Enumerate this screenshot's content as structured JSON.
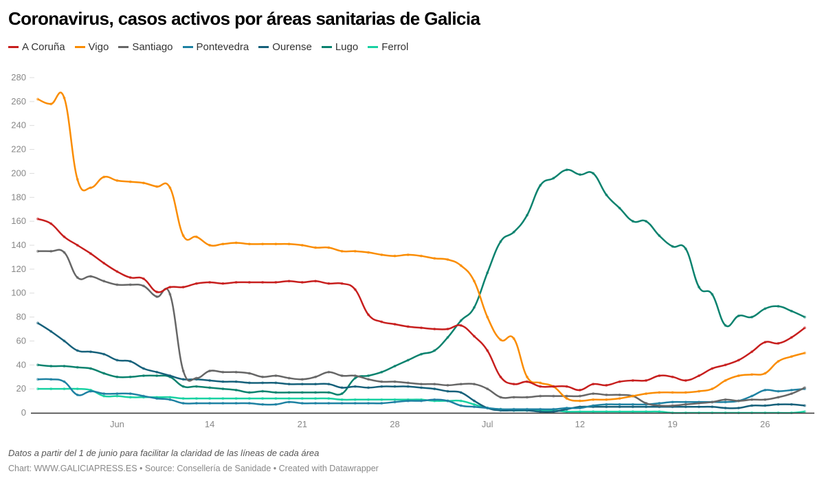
{
  "chart_data": {
    "type": "line",
    "title": "Coronavirus, casos activos por áreas sanitarias de Galicia",
    "xlabel": "",
    "ylabel": "",
    "ylim": [
      0,
      280
    ],
    "yticks": [
      0,
      20,
      40,
      60,
      80,
      100,
      120,
      140,
      160,
      180,
      200,
      220,
      240,
      260,
      280
    ],
    "xtick_labels": [
      {
        "date": "Jun 7",
        "label": "Jun"
      },
      {
        "date": "Jun 14",
        "label": "14"
      },
      {
        "date": "Jun 21",
        "label": "21"
      },
      {
        "date": "Jun 28",
        "label": "28"
      },
      {
        "date": "Jul 5",
        "label": "Jul"
      },
      {
        "date": "Jul 12",
        "label": "12"
      },
      {
        "date": "Jul 19",
        "label": "19"
      },
      {
        "date": "Jul 26",
        "label": "26"
      }
    ],
    "grid": false,
    "legend_placement": "top-left",
    "x": [
      "Jun 1",
      "Jun 2",
      "Jun 3",
      "Jun 4",
      "Jun 5",
      "Jun 6",
      "Jun 7",
      "Jun 8",
      "Jun 9",
      "Jun 10",
      "Jun 11",
      "Jun 12",
      "Jun 13",
      "Jun 14",
      "Jun 15",
      "Jun 16",
      "Jun 17",
      "Jun 18",
      "Jun 19",
      "Jun 20",
      "Jun 21",
      "Jun 22",
      "Jun 23",
      "Jun 24",
      "Jun 25",
      "Jun 26",
      "Jun 27",
      "Jun 28",
      "Jun 29",
      "Jun 30",
      "Jul 1",
      "Jul 2",
      "Jul 3",
      "Jul 4",
      "Jul 5",
      "Jul 6",
      "Jul 7",
      "Jul 8",
      "Jul 9",
      "Jul 10",
      "Jul 11",
      "Jul 12",
      "Jul 13",
      "Jul 14",
      "Jul 15",
      "Jul 16",
      "Jul 17",
      "Jul 18",
      "Jul 19",
      "Jul 20",
      "Jul 21",
      "Jul 22",
      "Jul 23",
      "Jul 24",
      "Jul 25",
      "Jul 26",
      "Jul 27",
      "Jul 28",
      "Jul 29"
    ],
    "series": [
      {
        "name": "A Coruña",
        "color": "#c71e1d",
        "values": [
          162,
          158,
          147,
          140,
          133,
          125,
          118,
          113,
          112,
          101,
          105,
          105,
          108,
          109,
          108,
          109,
          109,
          109,
          109,
          110,
          109,
          110,
          108,
          108,
          103,
          82,
          76,
          74,
          72,
          71,
          70,
          70,
          73,
          64,
          52,
          30,
          24,
          26,
          22,
          22,
          22,
          19,
          24,
          23,
          26,
          27,
          27,
          31,
          30,
          27,
          31,
          37,
          40,
          44,
          51,
          59,
          58,
          63,
          71
        ]
      },
      {
        "name": "Vigo",
        "color": "#fa8c00",
        "values": [
          262,
          258,
          263,
          195,
          188,
          197,
          194,
          193,
          192,
          189,
          188,
          148,
          147,
          140,
          141,
          142,
          141,
          141,
          141,
          141,
          140,
          138,
          138,
          135,
          135,
          134,
          132,
          131,
          132,
          131,
          129,
          128,
          123,
          110,
          80,
          61,
          62,
          30,
          25,
          22,
          12,
          10,
          11,
          11,
          12,
          14,
          16,
          17,
          17,
          17,
          18,
          20,
          27,
          31,
          32,
          33,
          43,
          47,
          50
        ]
      },
      {
        "name": "Santiago",
        "color": "#666666",
        "values": [
          135,
          135,
          134,
          113,
          114,
          110,
          107,
          107,
          106,
          97,
          99,
          35,
          29,
          35,
          34,
          34,
          33,
          30,
          31,
          29,
          28,
          30,
          34,
          31,
          31,
          28,
          26,
          26,
          25,
          24,
          24,
          23,
          24,
          24,
          20,
          13,
          13,
          13,
          14,
          14,
          14,
          14,
          16,
          15,
          15,
          14,
          8,
          6,
          6,
          7,
          8,
          9,
          11,
          10,
          11,
          11,
          13,
          16,
          21
        ]
      },
      {
        "name": "Pontevedra",
        "color": "#1d81a2",
        "values": [
          28,
          28,
          26,
          15,
          18,
          16,
          16,
          16,
          14,
          12,
          11,
          8,
          8,
          8,
          8,
          8,
          8,
          7,
          7,
          9,
          8,
          8,
          8,
          8,
          8,
          8,
          8,
          9,
          10,
          10,
          11,
          10,
          6,
          5,
          4,
          3,
          3,
          3,
          3,
          3,
          4,
          4,
          6,
          7,
          7,
          7,
          7,
          8,
          9,
          9,
          9,
          9,
          9,
          10,
          14,
          19,
          18,
          19,
          20
        ]
      },
      {
        "name": "Ourense",
        "color": "#15607a",
        "values": [
          75,
          68,
          60,
          52,
          51,
          49,
          44,
          43,
          37,
          34,
          31,
          28,
          28,
          27,
          26,
          26,
          25,
          25,
          25,
          24,
          24,
          24,
          24,
          21,
          22,
          21,
          22,
          22,
          22,
          21,
          20,
          18,
          17,
          10,
          4,
          2,
          2,
          2,
          1,
          1,
          3,
          5,
          5,
          5,
          5,
          5,
          5,
          5,
          5,
          5,
          5,
          5,
          4,
          4,
          6,
          6,
          7,
          7,
          6
        ]
      },
      {
        "name": "Lugo",
        "color": "#09826e",
        "values": [
          40,
          39,
          39,
          38,
          37,
          33,
          30,
          30,
          31,
          31,
          30,
          22,
          22,
          21,
          20,
          19,
          17,
          18,
          17,
          17,
          17,
          17,
          17,
          16,
          29,
          31,
          34,
          39,
          44,
          49,
          52,
          63,
          77,
          88,
          117,
          143,
          151,
          165,
          190,
          196,
          203,
          199,
          200,
          182,
          171,
          160,
          160,
          148,
          139,
          137,
          105,
          99,
          73,
          81,
          80,
          87,
          89,
          85,
          80
        ]
      },
      {
        "name": "Ferrol",
        "color": "#18d1a2",
        "values": [
          20,
          20,
          20,
          20,
          19,
          14,
          14,
          13,
          13,
          13,
          13,
          12,
          12,
          12,
          12,
          12,
          12,
          12,
          12,
          12,
          12,
          12,
          12,
          11,
          11,
          11,
          11,
          11,
          11,
          11,
          10,
          10,
          10,
          7,
          4,
          3,
          2,
          2,
          2,
          2,
          1,
          1,
          1,
          1,
          1,
          1,
          1,
          1,
          0,
          0,
          0,
          0,
          0,
          0,
          0,
          0,
          0,
          0,
          1
        ]
      }
    ]
  },
  "notes": {
    "subtitle_note": "Datos a partir del 1 de junio para facilitar la claridad de las líneas de cada área",
    "footer": "Chart: WWW.GALICIAPRESS.ES • Source: Consellería de Sanidade • Created with Datawrapper"
  }
}
